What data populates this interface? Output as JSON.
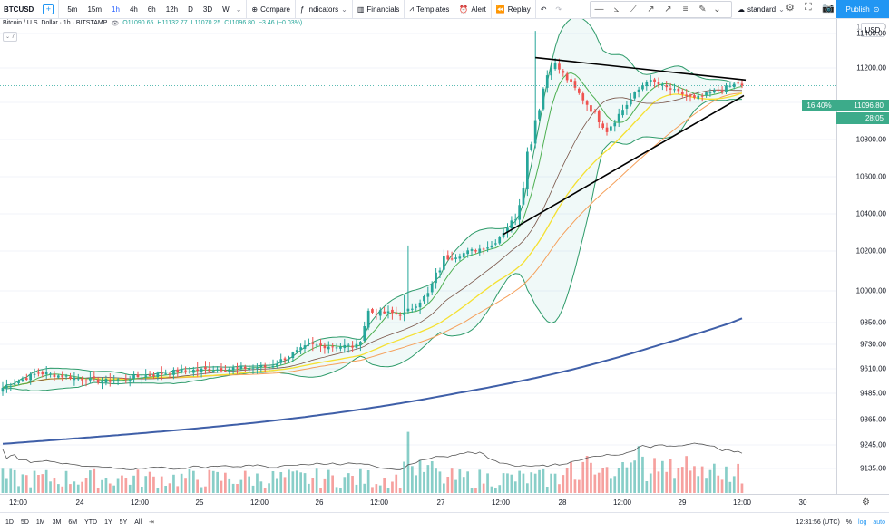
{
  "toolbar": {
    "symbol": "BTCUSD",
    "add_symbol": "+",
    "intervals": [
      "5m",
      "15m",
      "1h",
      "4h",
      "6h",
      "12h",
      "D",
      "3D",
      "W"
    ],
    "active_interval": "1h",
    "compare": "Compare",
    "indicators": "Indicators",
    "financials": "Financials",
    "templates": "Templates",
    "alert": "Alert",
    "replay": "Replay",
    "scale_mode": "standard",
    "publish": "Publish"
  },
  "legend": {
    "title": "Bitcoin / U.S. Dollar · 1h · BITSTAMP",
    "open": "O11090.65",
    "high": "H11132.77",
    "low": "L11070.25",
    "close": "C11096.80",
    "change": "−3.46 (−0.03%)",
    "collapse": "⌄ 7"
  },
  "price_axis": {
    "currency": "USD",
    "ticks": [
      "11400.00",
      "11200.00",
      "10800.00",
      "10600.00",
      "10400.00",
      "10200.00",
      "10000.00",
      "9850.00",
      "9730.00",
      "9610.00",
      "9485.00",
      "9365.00",
      "9245.00",
      "9135.00"
    ],
    "partial_tick": "11600.00",
    "last_price": "11096.80",
    "countdown": "28:05",
    "percent_label": "16.40%"
  },
  "time_axis": {
    "ticks": [
      "12:00",
      "24",
      "12:00",
      "25",
      "12:00",
      "26",
      "12:00",
      "27",
      "12:00",
      "28",
      "12:00",
      "29",
      "12:00",
      "30"
    ]
  },
  "footer": {
    "ranges": [
      "1D",
      "5D",
      "1M",
      "3M",
      "6M",
      "YTD",
      "1Y",
      "5Y",
      "All"
    ],
    "clock": "12:31:56 (UTC)",
    "percent": "%",
    "log": "log",
    "auto": "auto"
  },
  "colors": {
    "up": "#26a69a",
    "down": "#ef5350",
    "bollinger": "#2e9b6a",
    "ema_fast": "#4caf50",
    "ema_mid": "#795548",
    "ema_yellow": "#f5e030",
    "ema_orange": "#f5a05a",
    "ema_long": "#3f5fa8",
    "accent": "#2196f3"
  },
  "chart_data": {
    "type": "candlestick",
    "symbol": "BTCUSD",
    "interval": "1h",
    "x_labels": [
      "12:00",
      "24",
      "12:00",
      "25",
      "12:00",
      "26",
      "12:00",
      "27",
      "12:00",
      "28",
      "12:00",
      "29",
      "12:00",
      "30"
    ],
    "y_ticks": [
      9135,
      9245,
      9365,
      9485,
      9610,
      9730,
      9850,
      10000,
      10200,
      10400,
      10600,
      10800,
      11000,
      11200,
      11400
    ],
    "y_range": [
      9080,
      11620
    ],
    "last": 11096.8,
    "segments": [
      {
        "bars": 10,
        "start": 9505,
        "end": 9590
      },
      {
        "bars": 16,
        "start": 9590,
        "end": 9545
      },
      {
        "bars": 20,
        "start": 9545,
        "end": 9600
      },
      {
        "bars": 22,
        "start": 9600,
        "end": 9620
      },
      {
        "bars": 10,
        "start": 9620,
        "end": 9725
      },
      {
        "bars": 12,
        "start": 9725,
        "end": 9720
      },
      {
        "bars": 3,
        "start": 9720,
        "end": 9900
      },
      {
        "bars": 9,
        "start": 9900,
        "end": 9890
      },
      {
        "bars": 6,
        "start": 9890,
        "end": 9985
      },
      {
        "bars": 4,
        "start": 9985,
        "end": 10160
      },
      {
        "bars": 12,
        "start": 10160,
        "end": 10230
      },
      {
        "bars": 6,
        "start": 10230,
        "end": 10380
      },
      {
        "bars": 4,
        "start": 10380,
        "end": 10830
      },
      {
        "bars": 5,
        "start": 10830,
        "end": 11250
      },
      {
        "bars": 8,
        "start": 11250,
        "end": 11020
      },
      {
        "bars": 6,
        "start": 11020,
        "end": 10850
      },
      {
        "bars": 10,
        "start": 10850,
        "end": 11130
      },
      {
        "bars": 12,
        "start": 11130,
        "end": 11020
      },
      {
        "bars": 12,
        "start": 11020,
        "end": 11120
      }
    ],
    "volume_spikes": [
      {
        "index": 102,
        "factor": 4.2
      },
      {
        "index": 150,
        "factor": 2.6
      },
      {
        "index": 160,
        "factor": 2.3
      },
      {
        "index": 148,
        "factor": 2.1
      }
    ]
  }
}
